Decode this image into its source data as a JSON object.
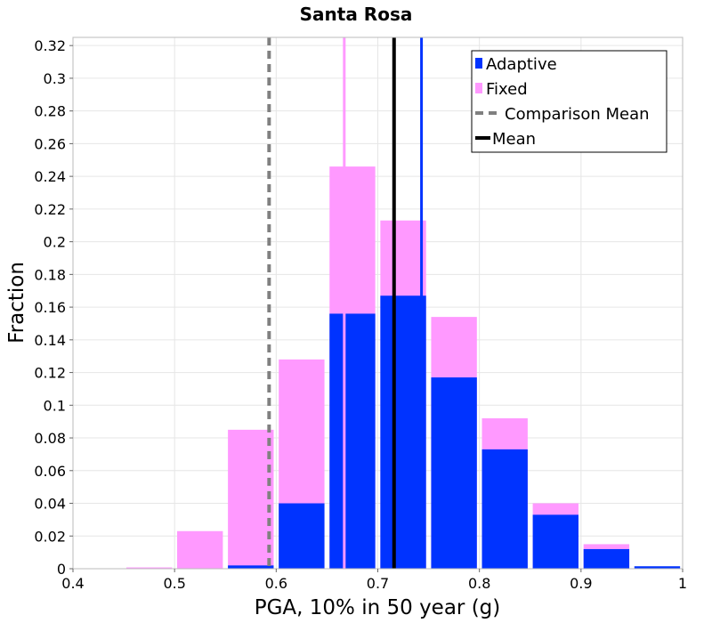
{
  "chart_data": {
    "type": "bar",
    "title": "Santa Rosa",
    "xlabel": "PGA, 10% in 50 year (g)",
    "ylabel": "Fraction",
    "xlim": [
      0.4,
      1.0
    ],
    "ylim": [
      0,
      0.325
    ],
    "x_ticks": [
      "0.4",
      "0.5",
      "0.6",
      "0.7",
      "0.8",
      "0.9",
      "1"
    ],
    "y_ticks": [
      "0",
      "0.02",
      "0.04",
      "0.06",
      "0.08",
      "0.1",
      "0.12",
      "0.14",
      "0.16",
      "0.18",
      "0.2",
      "0.22",
      "0.24",
      "0.26",
      "0.28",
      "0.3",
      "0.32"
    ],
    "bin_width": 0.05,
    "bin_centers": [
      0.425,
      0.475,
      0.525,
      0.575,
      0.625,
      0.675,
      0.725,
      0.775,
      0.825,
      0.875,
      0.925,
      0.975
    ],
    "series": [
      {
        "name": "Adaptive",
        "color": "#0033ff",
        "values": [
          0.0,
          0.0,
          0.0,
          0.002,
          0.04,
          0.156,
          0.167,
          0.117,
          0.073,
          0.033,
          0.012,
          0.0015
        ]
      },
      {
        "name": "Fixed",
        "color": "#ff99ff",
        "values": [
          0.0,
          0.0008,
          0.023,
          0.085,
          0.128,
          0.246,
          0.213,
          0.154,
          0.092,
          0.04,
          0.015,
          0.0
        ]
      }
    ],
    "vertical_lines": [
      {
        "name": "Comparison Mean",
        "x": 0.593,
        "color": "#808080",
        "style": "dashed"
      },
      {
        "name": "Mean",
        "x": 0.716,
        "color": "#000000",
        "style": "solid"
      },
      {
        "name": "Fixed mean",
        "x": 0.667,
        "color": "#ff99ff",
        "style": "solid"
      },
      {
        "name": "Adaptive mean",
        "x": 0.743,
        "color": "#0033ff",
        "style": "solid"
      }
    ],
    "legend": {
      "position": "top-right",
      "entries": [
        {
          "label": "Adaptive",
          "kind": "swatch",
          "color": "#0033ff"
        },
        {
          "label": "Fixed",
          "kind": "swatch",
          "color": "#ff99ff"
        },
        {
          "label": "Comparison Mean",
          "kind": "dashed-line",
          "color": "#808080"
        },
        {
          "label": "Mean",
          "kind": "line",
          "color": "#000000"
        }
      ]
    },
    "grid": true
  }
}
